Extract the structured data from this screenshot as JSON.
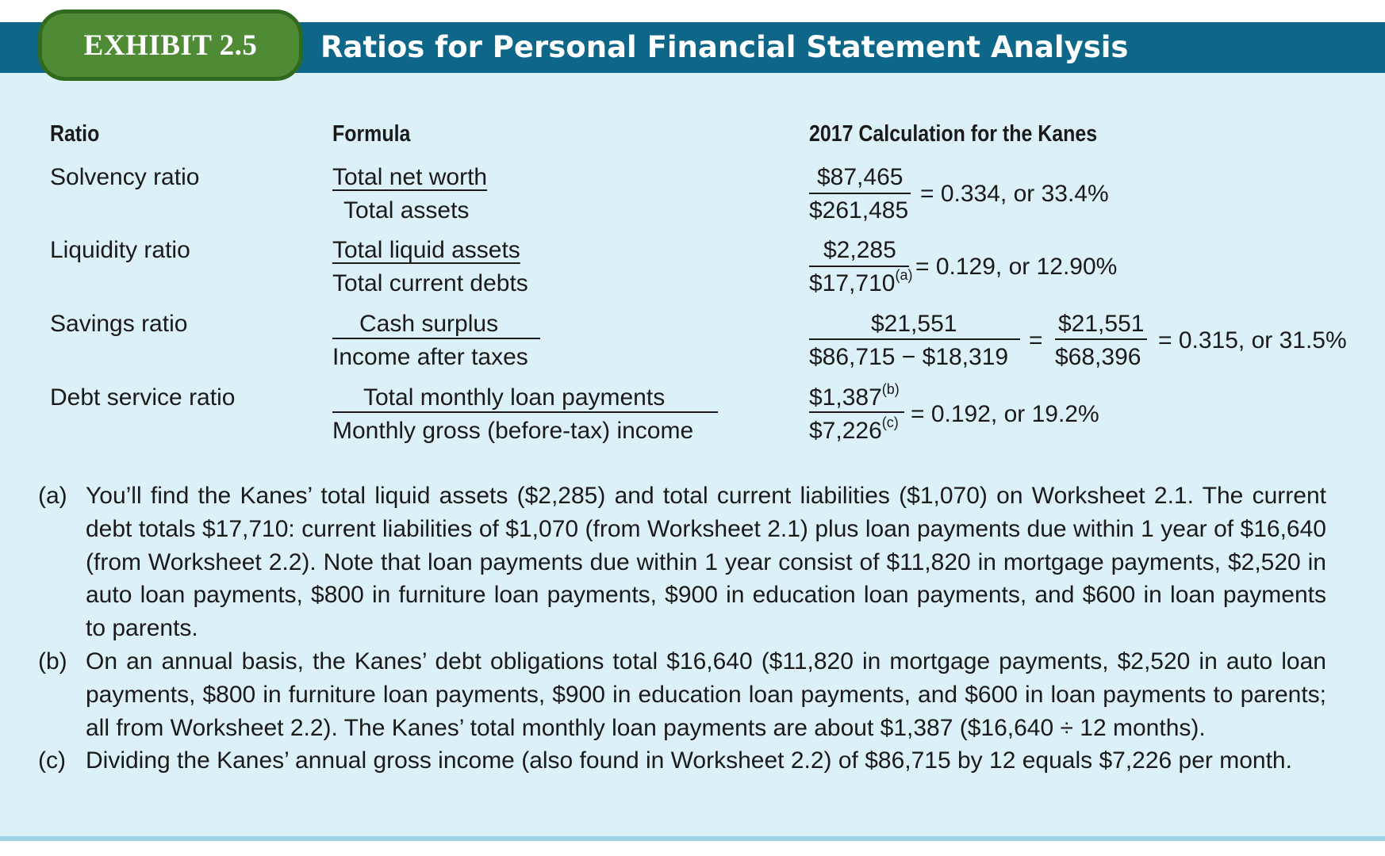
{
  "exhibit": {
    "badge": "EXHIBIT 2.5",
    "title": "Ratios for Personal Financial Statement Analysis"
  },
  "table": {
    "headers": {
      "ratio": "Ratio",
      "formula": "Formula",
      "calculation": "2017 Calculation for the Kanes"
    },
    "rows": [
      {
        "ratio": "Solvency ratio",
        "formula_num": "Total net worth",
        "formula_den": "Total assets",
        "calc_num": "$87,465",
        "calc_den": "$261,485",
        "result": "= 0.334, or 33.4%"
      },
      {
        "ratio": "Liquidity ratio",
        "formula_num": "Total liquid assets",
        "formula_den": "Total current debts",
        "calc_num": "$2,285",
        "calc_den": "$17,710",
        "calc_den_note": "(a)",
        "result": "= 0.129, or 12.90%"
      },
      {
        "ratio": "Savings ratio",
        "formula_num": "Cash surplus",
        "formula_den": "Income after taxes",
        "calc_num": "$21,551",
        "calc_den": "$86,715 − $18,319",
        "equals": "=",
        "calc2_num": "$21,551",
        "calc2_den": "$68,396",
        "result": "= 0.315, or 31.5%"
      },
      {
        "ratio": "Debt service ratio",
        "formula_num": "Total monthly loan payments",
        "formula_den": "Monthly gross (before-tax) income",
        "calc_num": "$1,387",
        "calc_num_note": "(b)",
        "calc_den": "$7,226",
        "calc_den_note": "(c)",
        "result": "= 0.192, or 19.2%"
      }
    ]
  },
  "footnotes": [
    {
      "label": "(a)",
      "text": "You’ll find the Kanes’ total liquid assets ($2,285) and total current liabilities ($1,070) on Worksheet 2.1. The current debt totals $17,710: current liabilities of $1,070 (from Worksheet 2.1) plus loan payments due within 1 year of $16,640 (from Worksheet 2.2). Note that loan payments due within 1 year consist of $11,820 in mortgage payments, $2,520 in auto loan payments, $800 in furniture loan payments, $900 in education loan payments, and $600 in loan payments to parents."
    },
    {
      "label": "(b)",
      "text": "On an annual basis, the Kanes’ debt obligations total $16,640 ($11,820 in mortgage payments, $2,520 in auto loan payments, $800 in furniture loan payments, $900 in education loan payments, and $600 in loan payments to parents; all from Worksheet 2.2). The Kanes’ total monthly loan payments are about $1,387 ($16,640 ÷ 12 months)."
    },
    {
      "label": "(c)",
      "text": "Dividing the Kanes’ annual gross income (also found in Worksheet 2.2) of $86,715 by 12 equals $7,226 per month."
    }
  ]
}
